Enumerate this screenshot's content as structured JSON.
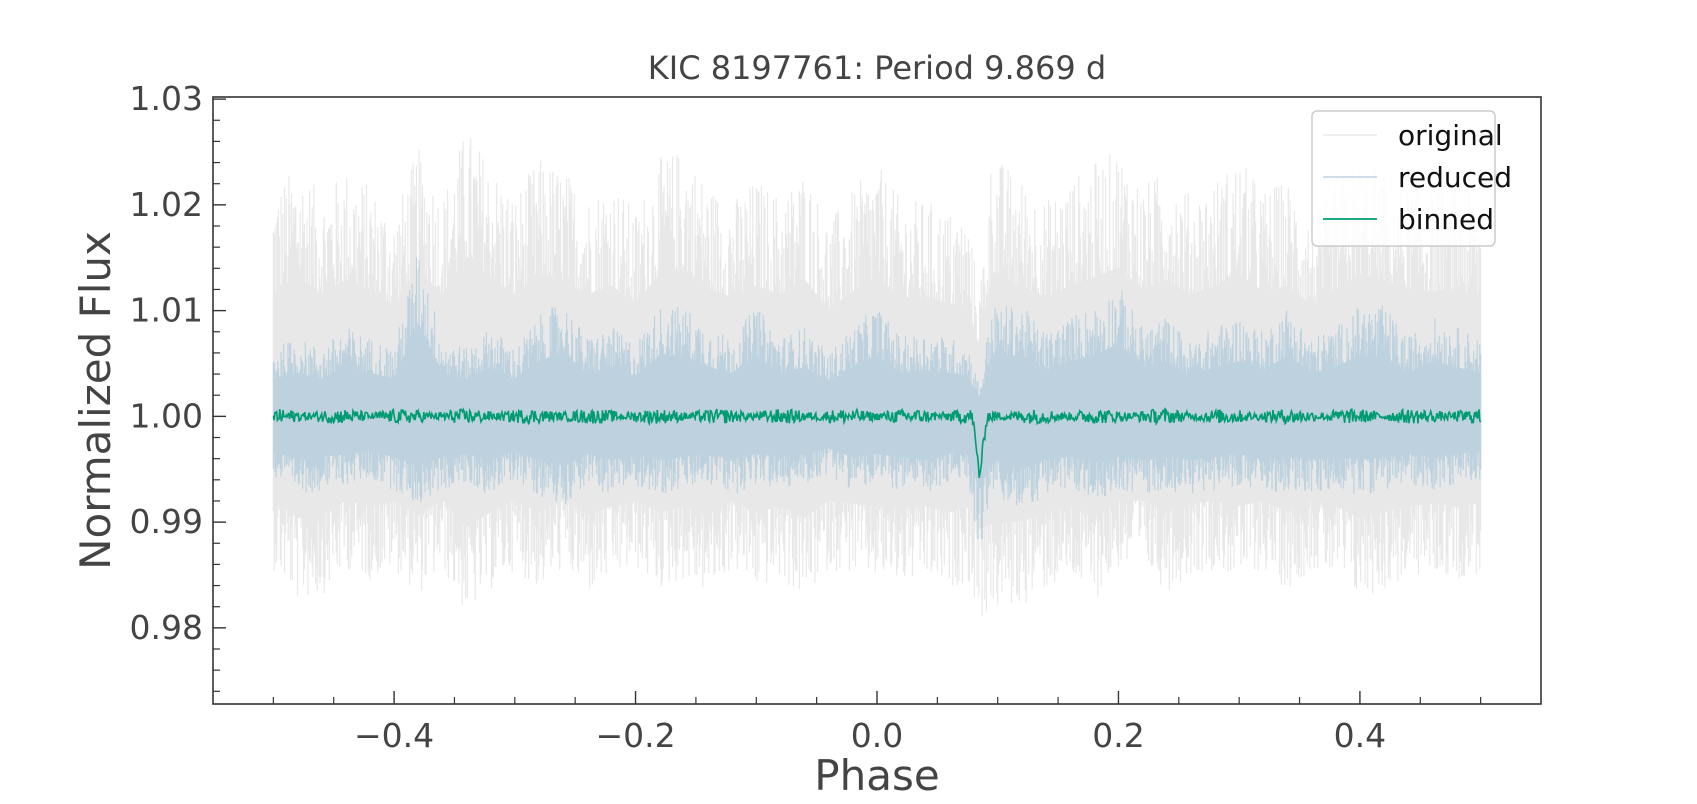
{
  "chart_data": {
    "type": "line",
    "title": "KIC 8197761: Period 9.869 d",
    "xlabel": "Phase",
    "ylabel": "Normalized Flux",
    "xlim": [
      -0.55,
      0.55
    ],
    "ylim": [
      0.9728,
      1.0302
    ],
    "xticks": [
      -0.4,
      -0.2,
      0.0,
      0.2,
      0.4
    ],
    "xtick_labels": [
      "−0.4",
      "−0.2",
      "0.0",
      "0.2",
      "0.4"
    ],
    "yticks": [
      0.98,
      0.99,
      1.0,
      1.01,
      1.02,
      1.03
    ],
    "ytick_labels": [
      "0.98",
      "0.99",
      "1.00",
      "1.01",
      "1.02",
      "1.03"
    ],
    "grid": false,
    "legend_position": "top-right",
    "series": [
      {
        "name": "original",
        "color": "#e8e8e8",
        "phase_range": [
          -0.5,
          0.5
        ],
        "baseline": 1.0,
        "envelope_x": [
          -0.5,
          -0.48,
          -0.46,
          -0.44,
          -0.42,
          -0.4,
          -0.38,
          -0.36,
          -0.34,
          -0.32,
          -0.3,
          -0.28,
          -0.26,
          -0.24,
          -0.22,
          -0.2,
          -0.18,
          -0.16,
          -0.14,
          -0.12,
          -0.1,
          -0.08,
          -0.06,
          -0.04,
          -0.02,
          0.0,
          0.02,
          0.04,
          0.06,
          0.075,
          0.085,
          0.095,
          0.12,
          0.14,
          0.16,
          0.18,
          0.2,
          0.22,
          0.24,
          0.26,
          0.28,
          0.3,
          0.32,
          0.34,
          0.36,
          0.38,
          0.4,
          0.42,
          0.44,
          0.46,
          0.48,
          0.5
        ],
        "envelope_upper": [
          1.0215,
          1.024,
          1.021,
          1.0235,
          1.022,
          1.019,
          1.0255,
          1.021,
          1.0275,
          1.024,
          1.021,
          1.0245,
          1.0235,
          1.021,
          1.0225,
          1.0195,
          1.0245,
          1.0255,
          1.022,
          1.0205,
          1.0225,
          1.021,
          1.0235,
          1.0185,
          1.0215,
          1.024,
          1.0205,
          1.0205,
          1.0195,
          1.019,
          1.012,
          1.025,
          1.0225,
          1.0205,
          1.0225,
          1.024,
          1.0255,
          1.022,
          1.0235,
          1.021,
          1.0225,
          1.0245,
          1.0215,
          1.0225,
          1.019,
          1.022,
          1.0245,
          1.0235,
          1.022,
          1.0215,
          1.022,
          1.0205
        ],
        "envelope_lower": [
          0.9855,
          0.9825,
          0.983,
          0.9855,
          0.9845,
          0.9855,
          0.983,
          0.9855,
          0.981,
          0.9835,
          0.9855,
          0.9835,
          0.9855,
          0.983,
          0.9845,
          0.9855,
          0.9835,
          0.9845,
          0.983,
          0.9855,
          0.9835,
          0.9845,
          0.9825,
          0.9855,
          0.985,
          0.9845,
          0.984,
          0.9845,
          0.9835,
          0.9845,
          0.9805,
          0.9815,
          0.982,
          0.9835,
          0.9845,
          0.9825,
          0.9855,
          0.9855,
          0.9835,
          0.985,
          0.9855,
          0.9845,
          0.9855,
          0.9835,
          0.9855,
          0.9845,
          0.9825,
          0.9835,
          0.9845,
          0.985,
          0.9845,
          0.985
        ]
      },
      {
        "name": "reduced",
        "color": "#bdd2de",
        "phase_range": [
          -0.5,
          0.5
        ],
        "baseline": 1.0,
        "envelope_x": [
          -0.5,
          -0.48,
          -0.46,
          -0.44,
          -0.42,
          -0.4,
          -0.38,
          -0.36,
          -0.34,
          -0.32,
          -0.3,
          -0.28,
          -0.26,
          -0.24,
          -0.22,
          -0.2,
          -0.18,
          -0.16,
          -0.14,
          -0.12,
          -0.1,
          -0.08,
          -0.06,
          -0.04,
          -0.02,
          0.0,
          0.02,
          0.04,
          0.06,
          0.075,
          0.085,
          0.095,
          0.12,
          0.14,
          0.16,
          0.18,
          0.2,
          0.22,
          0.24,
          0.26,
          0.28,
          0.3,
          0.32,
          0.34,
          0.36,
          0.38,
          0.4,
          0.42,
          0.44,
          0.46,
          0.48,
          0.5
        ],
        "envelope_upper": [
          1.0065,
          1.0075,
          1.0065,
          1.0085,
          1.0075,
          1.0065,
          1.016,
          1.0075,
          1.0065,
          1.0085,
          1.0065,
          1.0095,
          1.011,
          1.0075,
          1.0085,
          1.007,
          1.0105,
          1.0105,
          1.0085,
          1.0075,
          1.0105,
          1.0075,
          1.0085,
          1.006,
          1.0085,
          1.0105,
          1.0075,
          1.008,
          1.0075,
          1.007,
          1.003,
          1.0105,
          1.0105,
          1.008,
          1.0095,
          1.0105,
          1.0125,
          1.0085,
          1.0095,
          1.007,
          1.0085,
          1.0095,
          1.008,
          1.0105,
          1.0075,
          1.0085,
          1.0105,
          1.0105,
          1.0075,
          1.0095,
          1.0085,
          1.0075
        ],
        "envelope_lower": [
          0.994,
          0.9925,
          0.993,
          0.9935,
          0.994,
          0.993,
          0.9915,
          0.993,
          0.9935,
          0.9925,
          0.994,
          0.9925,
          0.9915,
          0.9935,
          0.9925,
          0.9935,
          0.9925,
          0.993,
          0.9935,
          0.9925,
          0.9935,
          0.993,
          0.9935,
          0.9945,
          0.993,
          0.9935,
          0.993,
          0.9925,
          0.9935,
          0.994,
          0.987,
          0.9925,
          0.991,
          0.9925,
          0.993,
          0.992,
          0.993,
          0.9925,
          0.993,
          0.9925,
          0.993,
          0.9935,
          0.9925,
          0.993,
          0.9925,
          0.993,
          0.9925,
          0.993,
          0.9935,
          0.993,
          0.9935,
          0.994
        ]
      },
      {
        "name": "binned",
        "color": "#009b72",
        "phase_range": [
          -0.5,
          0.5
        ],
        "baseline": 1.0,
        "noise_amplitude": 0.0007,
        "transit_center": 0.085,
        "transit_depth": 0.0057,
        "transit_half_width": 0.006
      }
    ]
  }
}
